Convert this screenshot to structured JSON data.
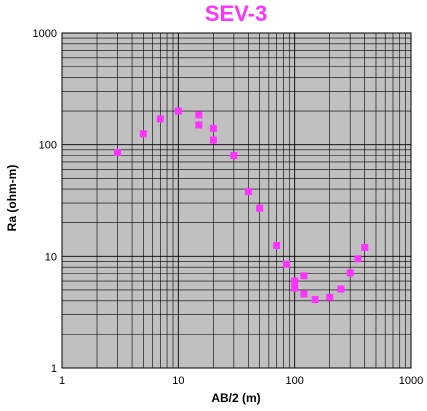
{
  "chart_data": {
    "type": "scatter",
    "title": "SEV-3",
    "xlabel": "AB/2 (m)",
    "ylabel": "Ra (ohm-m)",
    "x_scale": "log",
    "y_scale": "log",
    "xlim": [
      1,
      1000
    ],
    "ylim": [
      1,
      1000
    ],
    "x_tick_labels": [
      "1",
      "10",
      "100",
      "1000"
    ],
    "y_tick_labels": [
      "1",
      "10",
      "100",
      "1000"
    ],
    "grid": true,
    "legend": "none",
    "series": [
      {
        "marker": "square",
        "color": "#ff33ff",
        "points": [
          {
            "x": 3,
            "y": 85
          },
          {
            "x": 5,
            "y": 125
          },
          {
            "x": 7,
            "y": 170
          },
          {
            "x": 10,
            "y": 200
          },
          {
            "x": 15,
            "y": 185
          },
          {
            "x": 15,
            "y": 150
          },
          {
            "x": 20,
            "y": 140
          },
          {
            "x": 20,
            "y": 110
          },
          {
            "x": 30,
            "y": 80
          },
          {
            "x": 40,
            "y": 38
          },
          {
            "x": 50,
            "y": 27
          },
          {
            "x": 70,
            "y": 12.5
          },
          {
            "x": 85,
            "y": 8.5
          },
          {
            "x": 100,
            "y": 6
          },
          {
            "x": 100,
            "y": 5.2
          },
          {
            "x": 120,
            "y": 6.7
          },
          {
            "x": 120,
            "y": 4.6
          },
          {
            "x": 150,
            "y": 4.1
          },
          {
            "x": 200,
            "y": 4.3
          },
          {
            "x": 250,
            "y": 5.1
          },
          {
            "x": 300,
            "y": 7.1
          },
          {
            "x": 350,
            "y": 9.5
          },
          {
            "x": 400,
            "y": 12
          }
        ]
      }
    ]
  },
  "colors": {
    "title": "#ff33ff",
    "plot_background": "#c0c0c0",
    "grid": "#000000",
    "marker": "#ff33ff"
  }
}
